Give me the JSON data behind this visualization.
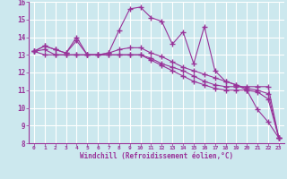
{
  "xlabel": "Windchill (Refroidissement éolien,°C)",
  "background_color": "#cce8ee",
  "grid_color": "#ffffff",
  "line_color": "#993399",
  "xlim": [
    -0.5,
    23.5
  ],
  "ylim": [
    8,
    16
  ],
  "xticks": [
    0,
    1,
    2,
    3,
    4,
    5,
    6,
    7,
    8,
    9,
    10,
    11,
    12,
    13,
    14,
    15,
    16,
    17,
    18,
    19,
    20,
    21,
    22,
    23
  ],
  "yticks": [
    8,
    9,
    10,
    11,
    12,
    13,
    14,
    15,
    16
  ],
  "series": [
    [
      13.2,
      13.5,
      13.3,
      13.1,
      13.8,
      13.0,
      13.0,
      13.1,
      14.4,
      15.6,
      15.7,
      15.1,
      14.9,
      13.6,
      14.3,
      12.5,
      14.6,
      12.1,
      11.5,
      11.3,
      11.0,
      9.9,
      9.2,
      8.3
    ],
    [
      13.2,
      13.0,
      13.0,
      13.0,
      13.0,
      13.0,
      13.0,
      13.0,
      13.0,
      13.0,
      13.0,
      12.8,
      12.5,
      12.3,
      12.1,
      11.8,
      11.5,
      11.3,
      11.2,
      11.2,
      11.2,
      11.2,
      11.2,
      8.3
    ],
    [
      13.2,
      13.3,
      13.0,
      13.0,
      13.0,
      13.0,
      13.0,
      13.0,
      13.0,
      13.0,
      13.0,
      12.7,
      12.4,
      12.1,
      11.8,
      11.5,
      11.3,
      11.1,
      11.0,
      11.0,
      11.0,
      10.9,
      10.5,
      8.3
    ],
    [
      13.2,
      13.5,
      13.3,
      13.1,
      14.0,
      13.0,
      13.0,
      13.1,
      13.3,
      13.4,
      13.4,
      13.1,
      12.9,
      12.6,
      12.3,
      12.1,
      11.9,
      11.7,
      11.5,
      11.3,
      11.1,
      11.0,
      10.8,
      8.3
    ]
  ]
}
